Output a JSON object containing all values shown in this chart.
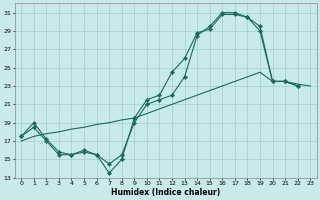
{
  "xlabel": "Humidex (Indice chaleur)",
  "bg_color": "#c8eaea",
  "grid_color": "#a0cccc",
  "line_color": "#1a6b5a",
  "xlim": [
    -0.5,
    23.5
  ],
  "ylim": [
    13,
    32
  ],
  "yticks": [
    13,
    15,
    17,
    19,
    21,
    23,
    25,
    27,
    29,
    31
  ],
  "xticks": [
    0,
    1,
    2,
    3,
    4,
    5,
    6,
    7,
    8,
    9,
    10,
    11,
    12,
    13,
    14,
    15,
    16,
    17,
    18,
    19,
    20,
    21,
    22,
    23
  ],
  "line1_x": [
    0,
    1,
    2,
    3,
    4,
    5,
    6,
    7,
    8,
    9,
    10,
    11,
    12,
    13,
    14,
    15,
    16,
    17,
    18,
    19,
    20,
    21,
    22
  ],
  "line1_y": [
    17.5,
    19.0,
    17.2,
    15.8,
    15.5,
    15.8,
    15.5,
    13.5,
    15.0,
    19.5,
    21.5,
    22.0,
    24.5,
    26.0,
    28.8,
    29.2,
    30.8,
    30.8,
    30.5,
    29.5,
    23.5,
    23.5,
    23.0
  ],
  "line2_x": [
    0,
    1,
    2,
    3,
    4,
    5,
    6,
    7,
    8,
    9,
    10,
    11,
    12,
    13,
    14,
    15,
    16,
    17,
    18,
    19,
    20,
    21,
    22
  ],
  "line2_y": [
    17.5,
    18.5,
    17.0,
    15.5,
    15.5,
    16.0,
    15.5,
    14.5,
    15.5,
    19.0,
    21.0,
    21.5,
    22.0,
    24.0,
    28.5,
    29.5,
    31.0,
    31.0,
    30.5,
    29.0,
    23.5,
    23.5,
    23.0
  ],
  "line3_x": [
    0,
    1,
    2,
    3,
    4,
    5,
    6,
    7,
    8,
    9,
    10,
    11,
    12,
    13,
    14,
    15,
    16,
    17,
    18,
    19,
    20,
    21,
    22,
    23
  ],
  "line3_y": [
    17.0,
    17.5,
    17.8,
    18.0,
    18.3,
    18.5,
    18.8,
    19.0,
    19.3,
    19.5,
    20.0,
    20.5,
    21.0,
    21.5,
    22.0,
    22.5,
    23.0,
    23.5,
    24.0,
    24.5,
    23.5,
    23.5,
    23.2,
    23.0
  ]
}
